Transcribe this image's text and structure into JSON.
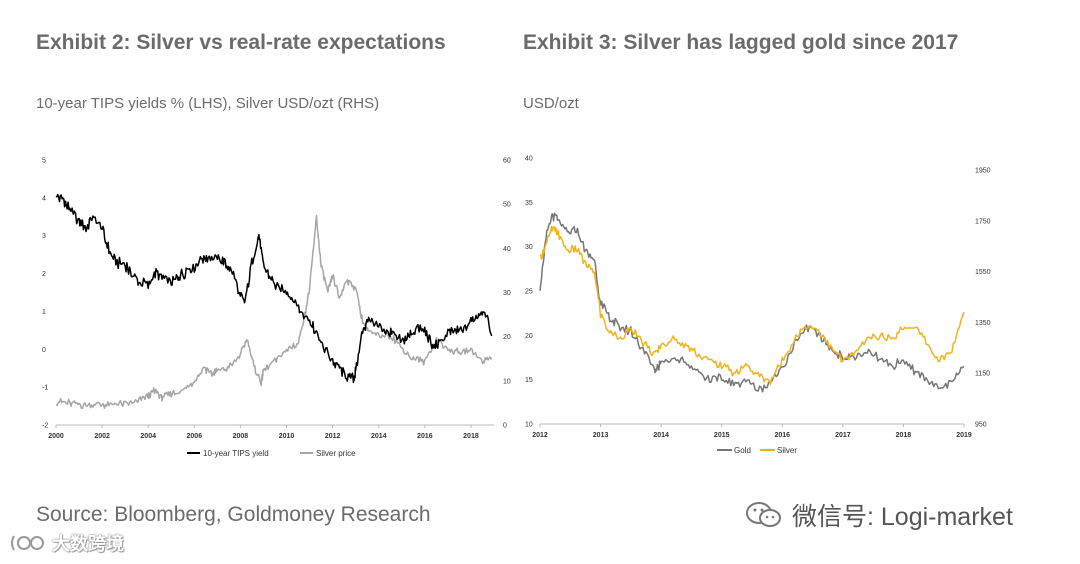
{
  "left": {
    "title": "Exhibit 2: Silver vs real-rate expectations",
    "subtitle": "10-year TIPS yields % (LHS), Silver USD/ozt (RHS)"
  },
  "right": {
    "title": "Exhibit 3: Silver has lagged gold since 2017",
    "subtitle": "USD/ozt"
  },
  "source": "Source: Bloomberg, Goldmoney Research",
  "watermark": {
    "wechat": "微信号: Logi-market",
    "brand": "大数跨境"
  },
  "colors": {
    "tips": "#000000",
    "silver_left": "#a6a6a6",
    "gold": "#767676",
    "silver_right": "#f2b21d"
  },
  "chart_data": [
    {
      "type": "line",
      "x_ticks": [
        "2000",
        "2002",
        "2004",
        "2006",
        "2008",
        "2010",
        "2012",
        "2014",
        "2016",
        "2018"
      ],
      "xlim": [
        2000,
        2019
      ],
      "y_left": {
        "ticks": [
          "-2",
          "-1",
          "0",
          "1",
          "2",
          "3",
          "4",
          "5"
        ],
        "ylim": [
          -2,
          5
        ]
      },
      "y_right": {
        "ticks": [
          "0",
          "10",
          "20",
          "30",
          "40",
          "50",
          "60"
        ],
        "ylim": [
          0,
          60
        ]
      },
      "series": [
        {
          "name": "10-year TIPS yield",
          "axis": "left",
          "color": "#000000",
          "x": [
            2000,
            2000.3,
            2000.6,
            2001,
            2001.3,
            2001.6,
            2002,
            2002.3,
            2002.6,
            2003,
            2003.3,
            2003.6,
            2004,
            2004.3,
            2004.6,
            2005,
            2005.3,
            2005.6,
            2006,
            2006.3,
            2006.6,
            2007,
            2007.3,
            2007.6,
            2008,
            2008.2,
            2008.5,
            2008.8,
            2009,
            2009.3,
            2009.6,
            2010,
            2010.3,
            2010.6,
            2011,
            2011.3,
            2011.6,
            2012,
            2012.3,
            2012.6,
            2012.9,
            2013,
            2013.3,
            2013.6,
            2014,
            2014.3,
            2014.6,
            2015,
            2015.3,
            2015.6,
            2016,
            2016.3,
            2016.6,
            2017,
            2017.3,
            2017.6,
            2018,
            2018.3,
            2018.6,
            2018.9
          ],
          "y": [
            4.05,
            3.95,
            3.7,
            3.4,
            3.2,
            3.5,
            3.2,
            2.6,
            2.3,
            2.25,
            1.95,
            1.8,
            1.7,
            2.0,
            1.9,
            1.75,
            1.9,
            2.05,
            2.2,
            2.4,
            2.45,
            2.4,
            2.3,
            2.1,
            1.4,
            1.25,
            2.3,
            3.0,
            2.2,
            1.9,
            1.6,
            1.55,
            1.3,
            1.0,
            0.8,
            0.4,
            0.05,
            -0.3,
            -0.5,
            -0.75,
            -0.8,
            -0.6,
            0.55,
            0.8,
            0.6,
            0.45,
            0.4,
            0.2,
            0.35,
            0.55,
            0.5,
            0.1,
            0.15,
            0.45,
            0.45,
            0.5,
            0.75,
            0.9,
            1.05,
            0.35
          ]
        },
        {
          "name": "Silver price",
          "axis": "right",
          "color": "#a6a6a6",
          "x": [
            2000,
            2000.5,
            2001,
            2001.5,
            2002,
            2002.5,
            2003,
            2003.5,
            2004,
            2004.3,
            2004.6,
            2005,
            2005.5,
            2006,
            2006.4,
            2006.8,
            2007,
            2007.5,
            2008,
            2008.3,
            2008.6,
            2008.9,
            2009,
            2009.5,
            2010,
            2010.5,
            2010.8,
            2011,
            2011.3,
            2011.5,
            2011.8,
            2012,
            2012.3,
            2012.6,
            2013,
            2013.3,
            2013.6,
            2014,
            2014.5,
            2015,
            2015.5,
            2016,
            2016.5,
            2017,
            2017.5,
            2018,
            2018.5,
            2018.9
          ],
          "y": [
            5.3,
            5.0,
            4.6,
            4.5,
            4.6,
            4.7,
            4.9,
            5.1,
            6.5,
            7.8,
            6.3,
            7.2,
            7.5,
            10,
            13.0,
            11.5,
            12.5,
            13.0,
            16,
            19.5,
            13.0,
            9.5,
            12.5,
            14.5,
            17,
            18.5,
            25.0,
            31.0,
            47.0,
            36.0,
            30.0,
            34,
            28.5,
            33.0,
            31,
            23.5,
            21.0,
            20,
            20.5,
            17.5,
            15.0,
            14.5,
            19.5,
            17.0,
            16.5,
            17.0,
            14.5,
            15.2
          ]
        },
        {
          "name": "Gold",
          "axis": "left",
          "color": "#767676",
          "x": [
            2012,
            2012.1,
            2012.2,
            2012.3,
            2012.45,
            2012.6,
            2012.75,
            2012.9,
            2013,
            2013.15,
            2013.3,
            2013.5,
            2013.7,
            2013.9,
            2014,
            2014.2,
            2014.4,
            2014.6,
            2014.8,
            2015,
            2015.2,
            2015.4,
            2015.6,
            2015.8,
            2016,
            2016.2,
            2016.4,
            2016.6,
            2016.8,
            2017,
            2017.2,
            2017.4,
            2017.6,
            2017.8,
            2018,
            2018.2,
            2018.4,
            2018.6,
            2018.8,
            2019
          ],
          "y": [
            25.5,
            31.0,
            33.5,
            33.0,
            31.5,
            32.0,
            29.5,
            28.5,
            23.5,
            22.0,
            21.0,
            20.5,
            18.5,
            16.0,
            17.0,
            17.5,
            17.0,
            16.0,
            15.0,
            15.0,
            14.5,
            15.0,
            14.0,
            14.5,
            16.5,
            19.0,
            21.0,
            20.0,
            18.5,
            17.5,
            17.5,
            18.0,
            17.5,
            16.5,
            17.0,
            16.0,
            15.0,
            14.0,
            14.5,
            16.5
          ]
        },
        {
          "name": "Silver",
          "axis": "right",
          "color": "#f2b21d",
          "x": [
            2012,
            2012.1,
            2012.2,
            2012.3,
            2012.45,
            2012.6,
            2012.75,
            2012.9,
            2013,
            2013.15,
            2013.3,
            2013.5,
            2013.7,
            2013.9,
            2014,
            2014.2,
            2014.4,
            2014.6,
            2014.8,
            2015,
            2015.2,
            2015.4,
            2015.6,
            2015.8,
            2016,
            2016.2,
            2016.4,
            2016.6,
            2016.8,
            2017,
            2017.2,
            2017.4,
            2017.6,
            2017.8,
            2018,
            2018.2,
            2018.4,
            2018.6,
            2018.8,
            2019
          ],
          "y": [
            1600,
            1660,
            1720,
            1700,
            1630,
            1640,
            1580,
            1540,
            1380,
            1310,
            1290,
            1320,
            1270,
            1220,
            1260,
            1280,
            1260,
            1230,
            1200,
            1180,
            1150,
            1180,
            1140,
            1120,
            1200,
            1280,
            1340,
            1320,
            1250,
            1200,
            1230,
            1280,
            1300,
            1280,
            1330,
            1330,
            1260,
            1200,
            1240,
            1390
          ]
        }
      ]
    },
    {
      "type": "line",
      "x_ticks": [
        "2012",
        "2013",
        "2014",
        "2015",
        "2016",
        "2017",
        "2018",
        "2019"
      ],
      "xlim": [
        2012,
        2019
      ],
      "y_left": {
        "ticks": [
          "10",
          "15",
          "20",
          "25",
          "30",
          "35",
          "40"
        ],
        "ylim": [
          10,
          40
        ]
      },
      "y_right": {
        "ticks": [
          "950",
          "1150",
          "1350",
          "1550",
          "1750",
          "1950"
        ],
        "ylim": [
          950,
          1950
        ]
      }
    }
  ],
  "legends": {
    "left": [
      "10-year TIPS yield",
      "Silver price"
    ],
    "right": [
      "Gold",
      "Silver"
    ]
  }
}
